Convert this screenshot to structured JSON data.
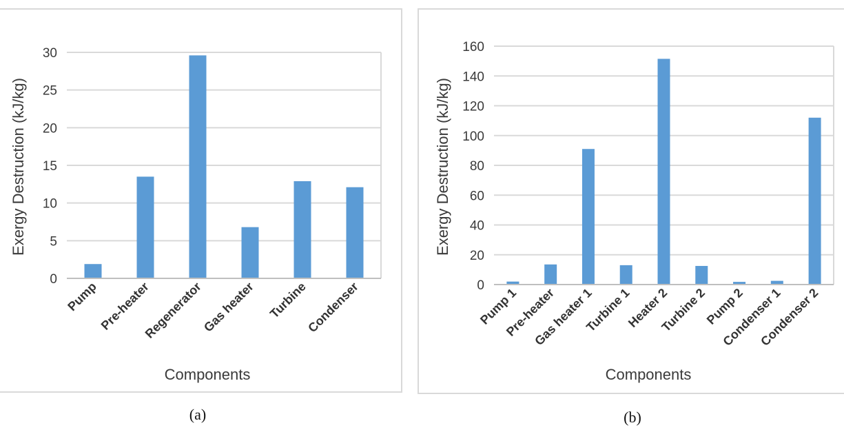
{
  "chart_data": [
    {
      "type": "bar",
      "panel_label": "(a)",
      "categories": [
        "Pump",
        "Pre-heater",
        "Regenerator",
        "Gas heater",
        "Turbine",
        "Condenser"
      ],
      "values": [
        1.9,
        13.5,
        29.6,
        6.8,
        12.9,
        12.1
      ],
      "xlabel": "Components",
      "ylabel": "Exergy Destruction (kJ/kg)",
      "ylim": [
        0,
        30
      ],
      "yticks": [
        0,
        5,
        10,
        15,
        20,
        25,
        30
      ],
      "grid": true,
      "bar_color": "#5b9bd5"
    },
    {
      "type": "bar",
      "panel_label": "(b)",
      "categories": [
        "Pump 1",
        "Pre-heater",
        "Gas heater 1",
        "Turbine 1",
        "Heater 2",
        "Turbine 2",
        "Pump 2",
        "Condenser 1",
        "Condenser 2"
      ],
      "values": [
        2,
        13.5,
        91,
        13,
        151.5,
        12.5,
        1.8,
        2.5,
        112
      ],
      "xlabel": "Components",
      "ylabel": "Exergy Destruction (kJ/kg)",
      "ylim": [
        0,
        160
      ],
      "yticks": [
        0,
        20,
        40,
        60,
        80,
        100,
        120,
        140,
        160
      ],
      "grid": true,
      "bar_color": "#5b9bd5"
    }
  ]
}
